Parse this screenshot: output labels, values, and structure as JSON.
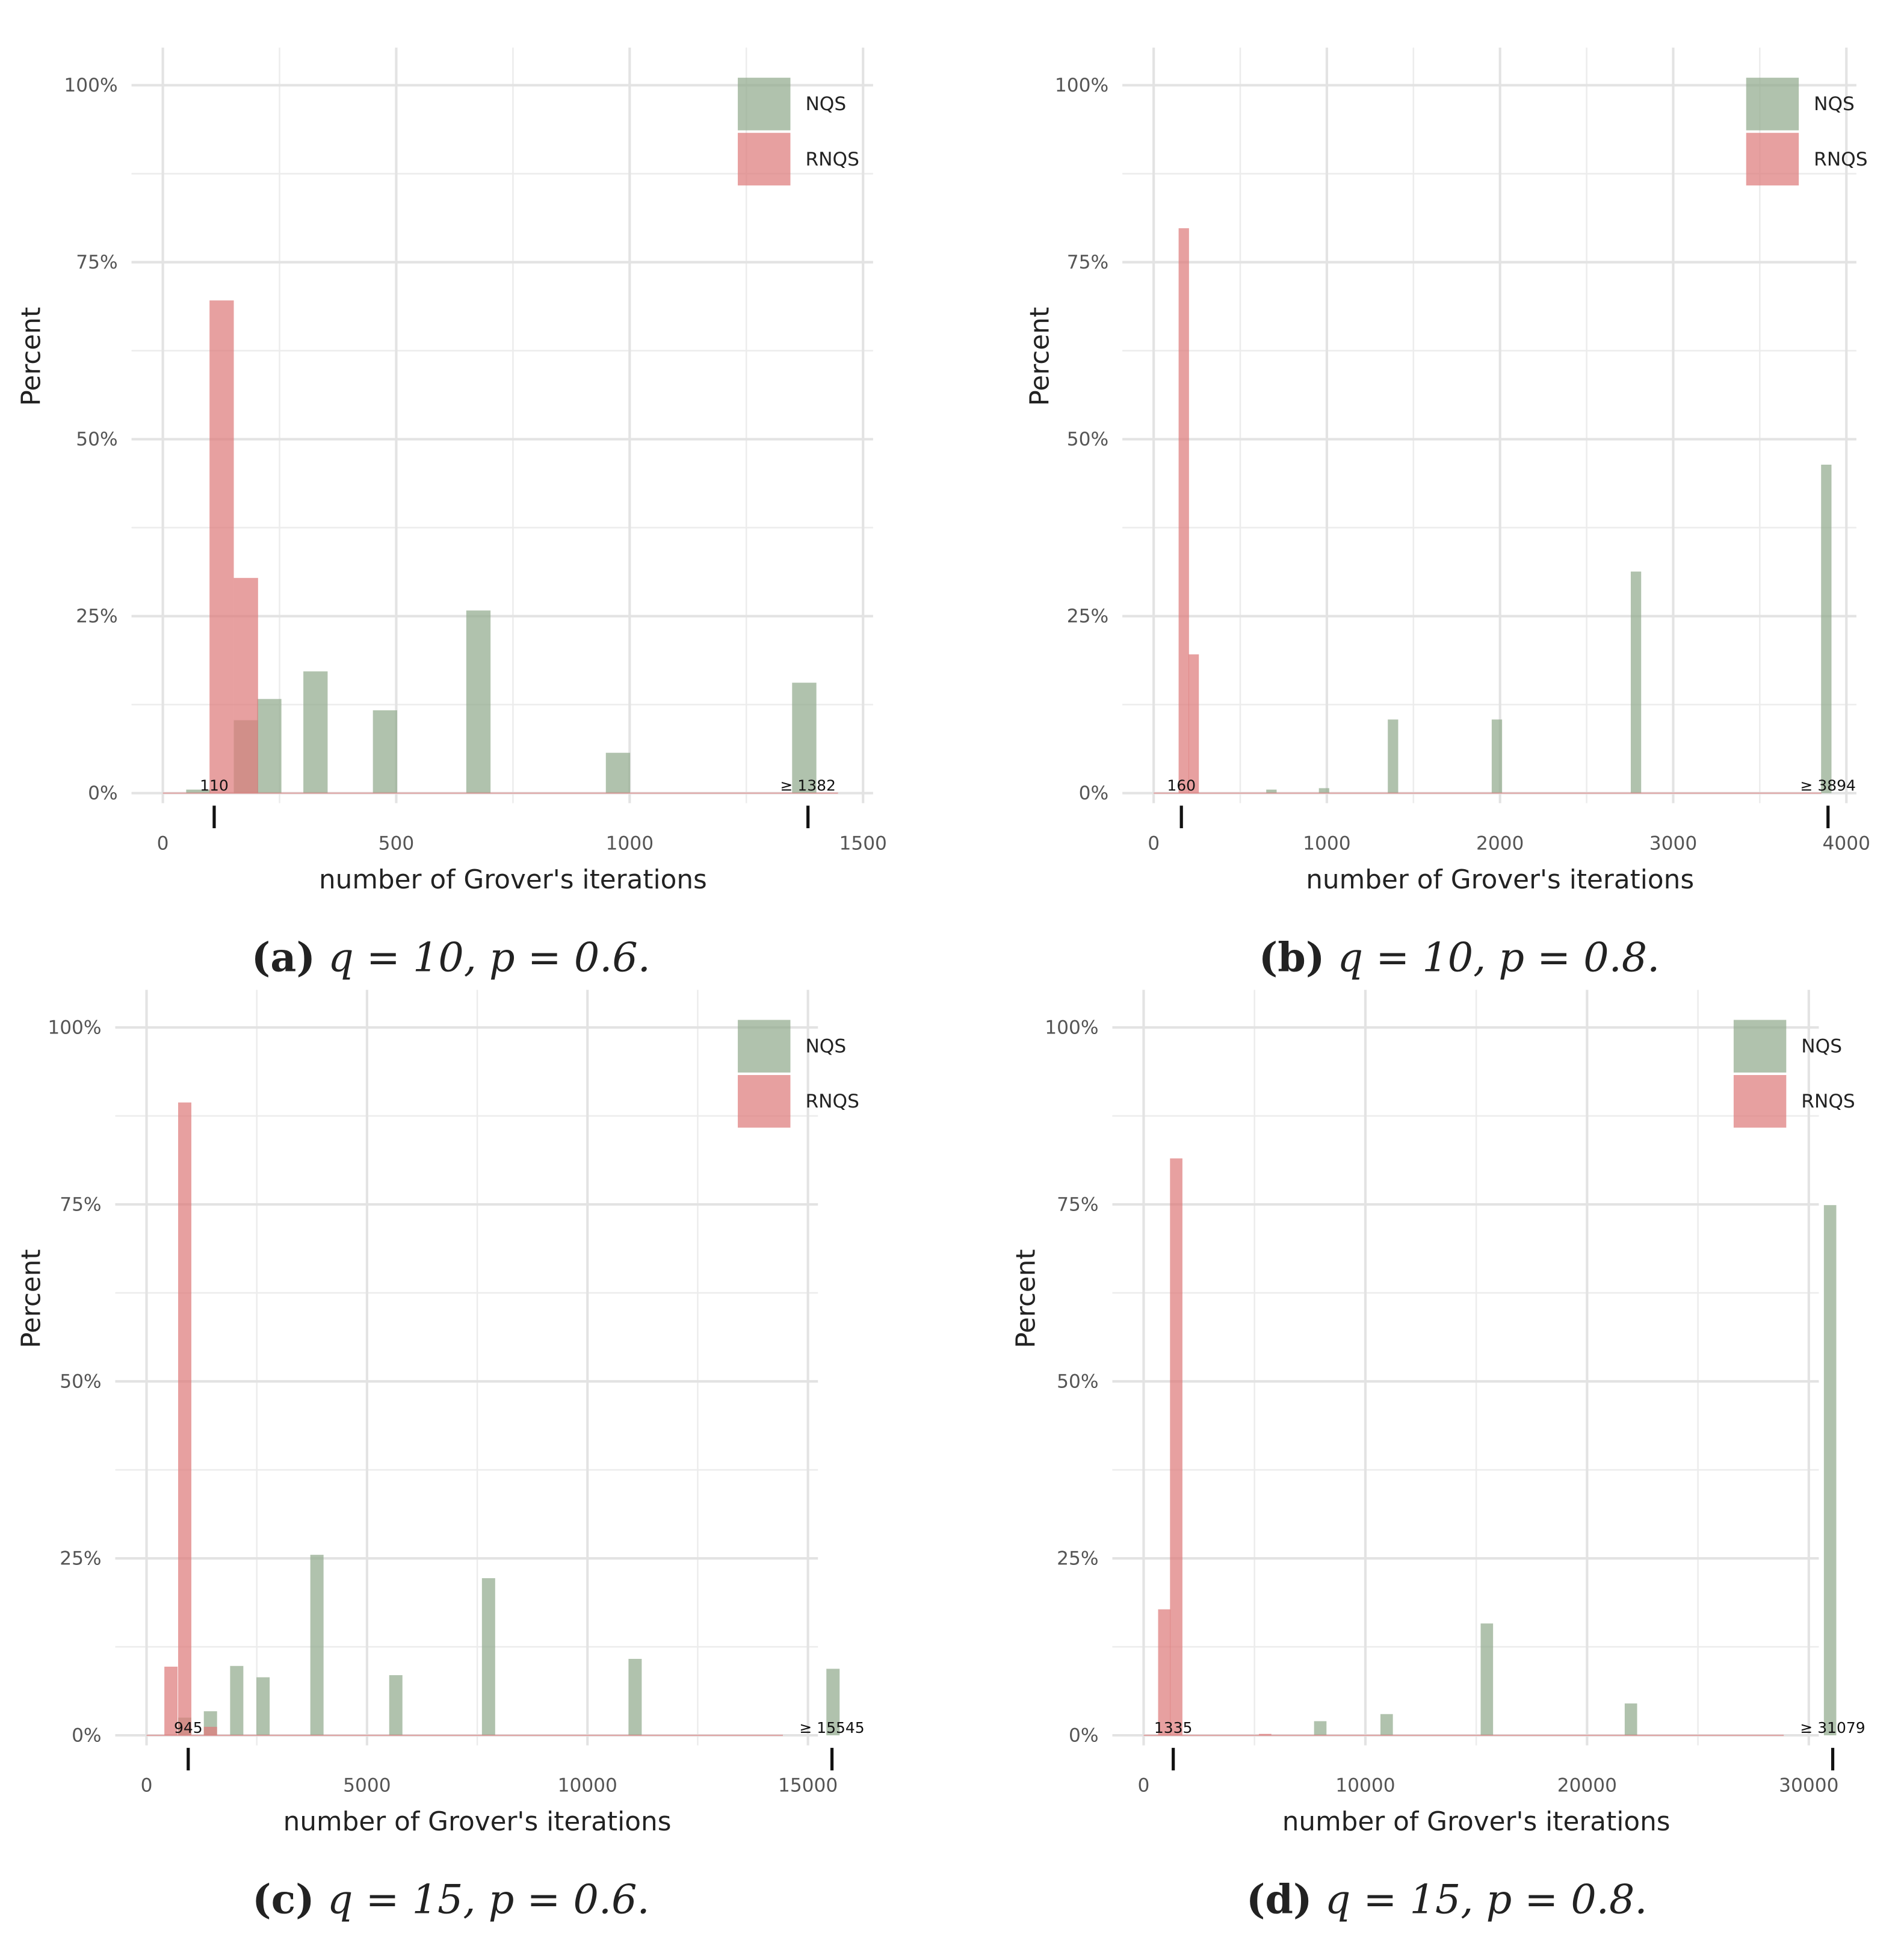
{
  "chart_data": [
    {
      "type": "bar",
      "caption_label": "(a)",
      "caption": "q = 10, p = 0.6.",
      "xlabel": "number of Grover's iterations",
      "ylabel": "Percent",
      "xlim": [
        0,
        1500
      ],
      "xticks": [
        0,
        500,
        1000,
        1500
      ],
      "ylim": [
        0,
        100
      ],
      "yticks": [
        {
          "value": 0,
          "label": "0%"
        },
        {
          "value": 25,
          "label": "25%"
        },
        {
          "value": 50,
          "label": "50%"
        },
        {
          "value": 75,
          "label": "75%"
        },
        {
          "value": 100,
          "label": "100%"
        }
      ],
      "grid": true,
      "legend": "upper right",
      "bin_width": 52,
      "series": [
        {
          "name": "NQS",
          "color": "#92ab8e",
          "x": [
            76,
            178,
            228,
            327,
            476,
            676,
            975,
            1374
          ],
          "values": [
            0.5,
            10.3,
            13.3,
            17.2,
            11.7,
            25.8,
            5.7,
            15.6
          ]
        },
        {
          "name": "RNQS",
          "color": "#de7b7b",
          "x": [
            126,
            178
          ],
          "values": [
            69.6,
            30.4
          ]
        }
      ],
      "annotations": [
        {
          "x": 110,
          "label": "110"
        },
        {
          "x": 1382,
          "label": "≥ 1382"
        }
      ]
    },
    {
      "type": "bar",
      "caption_label": "(b)",
      "caption": "q = 10, p = 0.8.",
      "xlabel": "number of Grover's iterations",
      "ylabel": "Percent",
      "xlim": [
        0,
        4000
      ],
      "xticks": [
        0,
        1000,
        2000,
        3000,
        4000
      ],
      "ylim": [
        0,
        100
      ],
      "yticks": [
        {
          "value": 0,
          "label": "0%"
        },
        {
          "value": 25,
          "label": "25%"
        },
        {
          "value": 50,
          "label": "50%"
        },
        {
          "value": 75,
          "label": "75%"
        },
        {
          "value": 100,
          "label": "100%"
        }
      ],
      "grid": true,
      "legend": "upper right",
      "bin_width": 60,
      "series": [
        {
          "name": "NQS",
          "color": "#92ab8e",
          "x": [
            680,
            984,
            1382,
            1982,
            2785,
            3884
          ],
          "values": [
            0.5,
            0.7,
            10.4,
            10.4,
            31.3,
            46.4
          ]
        },
        {
          "name": "RNQS",
          "color": "#de7b7b",
          "x": [
            174,
            231
          ],
          "values": [
            79.8,
            19.6
          ]
        }
      ],
      "annotations": [
        {
          "x": 160,
          "label": "160"
        },
        {
          "x": 3894,
          "label": "≥ 3894"
        }
      ]
    },
    {
      "type": "bar",
      "caption_label": "(c)",
      "caption": "q = 15, p = 0.6.",
      "xlabel": "number of Grover's iterations",
      "ylabel": "Percent",
      "xlim": [
        0,
        15000
      ],
      "xticks": [
        0,
        5000,
        10000,
        15000
      ],
      "ylim": [
        0,
        100
      ],
      "yticks": [
        {
          "value": 0,
          "label": "0%"
        },
        {
          "value": 25,
          "label": "25%"
        },
        {
          "value": 50,
          "label": "50%"
        },
        {
          "value": 75,
          "label": "75%"
        },
        {
          "value": 100,
          "label": "100%"
        }
      ],
      "grid": true,
      "legend": "upper right",
      "bin_width": 300,
      "series": [
        {
          "name": "NQS",
          "color": "#92ab8e",
          "x": [
            866,
            1449,
            2045,
            2642,
            3864,
            5653,
            7756,
            11080,
            15568
          ],
          "values": [
            2.5,
            3.4,
            9.8,
            8.2,
            25.5,
            8.5,
            22.2,
            10.8,
            9.4
          ]
        },
        {
          "name": "RNQS",
          "color": "#de7b7b",
          "x": [
            554,
            866,
            1449
          ],
          "values": [
            9.7,
            89.4,
            1.2
          ]
        }
      ],
      "annotations": [
        {
          "x": 945,
          "label": "945"
        },
        {
          "x": 15545,
          "label": "≥ 15545"
        }
      ]
    },
    {
      "type": "bar",
      "caption_label": "(d)",
      "caption": "q = 15, p = 0.8.",
      "xlabel": "number of Grover's iterations",
      "ylabel": "Percent",
      "xlim": [
        0,
        30000
      ],
      "xticks": [
        0,
        10000,
        20000,
        30000
      ],
      "ylim": [
        0,
        100
      ],
      "yticks": [
        {
          "value": 0,
          "label": "0%"
        },
        {
          "value": 25,
          "label": "25%"
        },
        {
          "value": 50,
          "label": "50%"
        },
        {
          "value": 75,
          "label": "75%"
        },
        {
          "value": 100,
          "label": "100%"
        }
      ],
      "grid": true,
      "legend": "upper right",
      "bin_width": 560,
      "series": [
        {
          "name": "NQS",
          "color": "#92ab8e",
          "x": [
            7966,
            10960,
            15480,
            21977,
            30960
          ],
          "values": [
            2,
            3,
            15.8,
            4.5,
            74.9
          ]
        },
        {
          "name": "RNQS",
          "color": "#de7b7b",
          "x": [
            932,
            1469,
            5480
          ],
          "values": [
            17.8,
            81.5,
            0.2
          ]
        }
      ],
      "annotations": [
        {
          "x": 1335,
          "label": "1335"
        },
        {
          "x": 31079,
          "label": "≥ 31079"
        }
      ]
    }
  ]
}
